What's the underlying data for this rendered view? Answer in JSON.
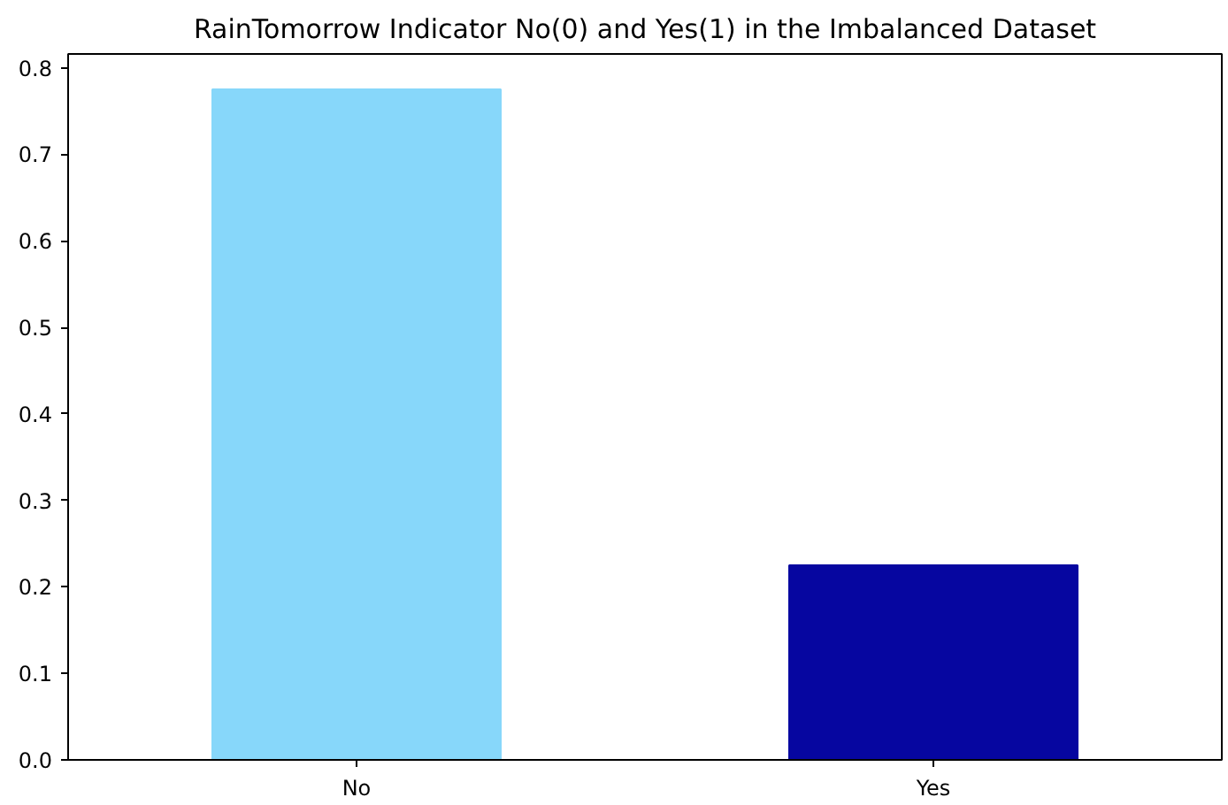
{
  "chart_data": {
    "type": "bar",
    "title": "RainTomorrow Indicator No(0) and Yes(1) in the Imbalanced Dataset",
    "categories": [
      "No",
      "Yes"
    ],
    "values": [
      0.775,
      0.225
    ],
    "colors": [
      "#87d7fa",
      "#0606a0"
    ],
    "ylim": [
      0,
      0.816
    ],
    "yticks": [
      {
        "value": 0,
        "label": "0.0"
      },
      0.1,
      0.2,
      0.3,
      0.4,
      0.5,
      0.6,
      0.7,
      0.8
    ],
    "grid": false
  }
}
